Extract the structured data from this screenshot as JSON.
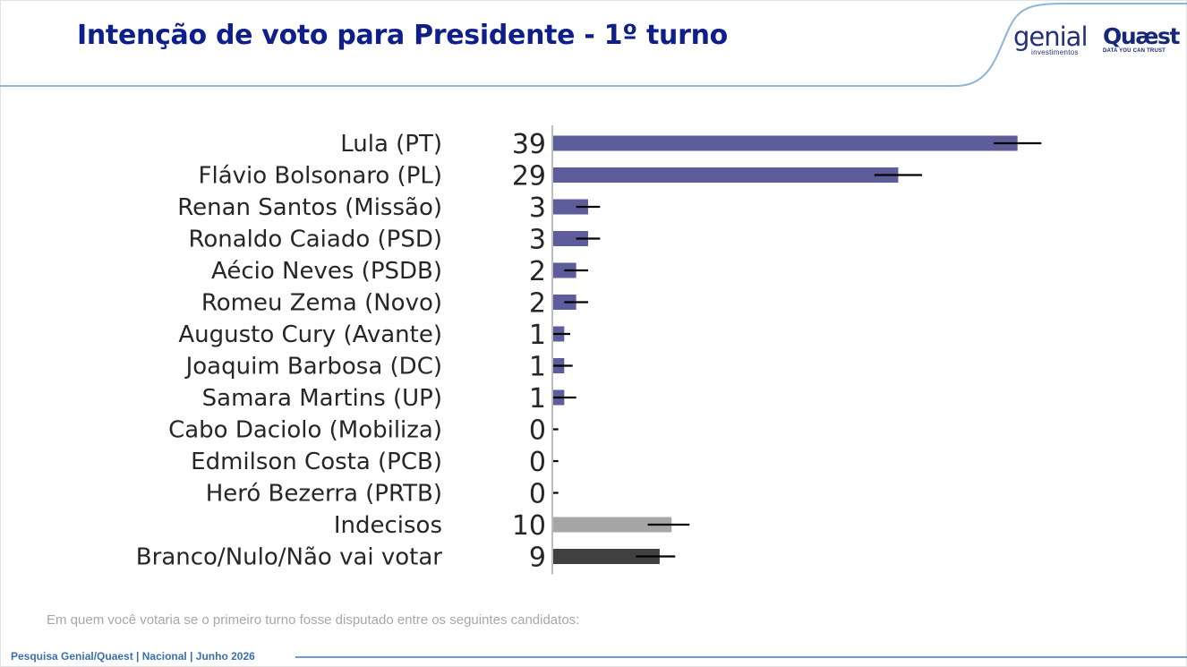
{
  "header": {
    "title": "Intenção de voto para Presidente - 1º turno",
    "logo_genial": "genial",
    "logo_genial_sub": "investimentos",
    "logo_quaest": "Quæst",
    "logo_quaest_sub": "DATA YOU CAN TRUST"
  },
  "chart_data": {
    "type": "bar",
    "orientation": "horizontal",
    "title": "Intenção de voto para Presidente - 1º turno",
    "categories": [
      "Lula (PT)",
      "Flávio Bolsonaro (PL)",
      "Renan Santos (Missão)",
      "Ronaldo Caiado (PSD)",
      "Aécio Neves (PSDB)",
      "Romeu Zema (Novo)",
      "Augusto Cury (Avante)",
      "Joaquim Barbosa (DC)",
      "Samara Martins (UP)",
      "Cabo Daciolo (Mobiliza)",
      "Edmilson Costa (PCB)",
      "Heró Bezerra (PRTB)",
      "Indecisos",
      "Branco/Nulo/Não vai votar"
    ],
    "values": [
      39,
      29,
      3,
      3,
      2,
      2,
      1,
      1,
      1,
      0,
      0,
      0,
      10,
      9
    ],
    "error_low": [
      37,
      27,
      2,
      2,
      1,
      1,
      0,
      0,
      0,
      0,
      0,
      0,
      8,
      7
    ],
    "error_high": [
      41,
      31,
      4,
      4,
      3,
      3,
      1.5,
      1.7,
      2,
      0.5,
      0.5,
      0.5,
      11.5,
      10.3
    ],
    "bar_colors": [
      "#5c5d9a",
      "#5c5d9a",
      "#5c5d9a",
      "#5c5d9a",
      "#5c5d9a",
      "#5c5d9a",
      "#5c5d9a",
      "#5c5d9a",
      "#5c5d9a",
      "#5c5d9a",
      "#5c5d9a",
      "#5c5d9a",
      "#a6a6a6",
      "#404040"
    ],
    "xlim": [
      0,
      41.5
    ],
    "grid": false,
    "legend": "none"
  },
  "footnote": "Em quem você votaria se o primeiro turno fosse disputado entre os seguintes candidatos:",
  "source": "Pesquisa Genial/Quaest | Nacional | Junho 2026",
  "colors": {
    "title": "#0f1f8a",
    "accent_line": "#6e9ccf",
    "footnote": "#a7a7a7",
    "source": "#3b6fb0"
  }
}
